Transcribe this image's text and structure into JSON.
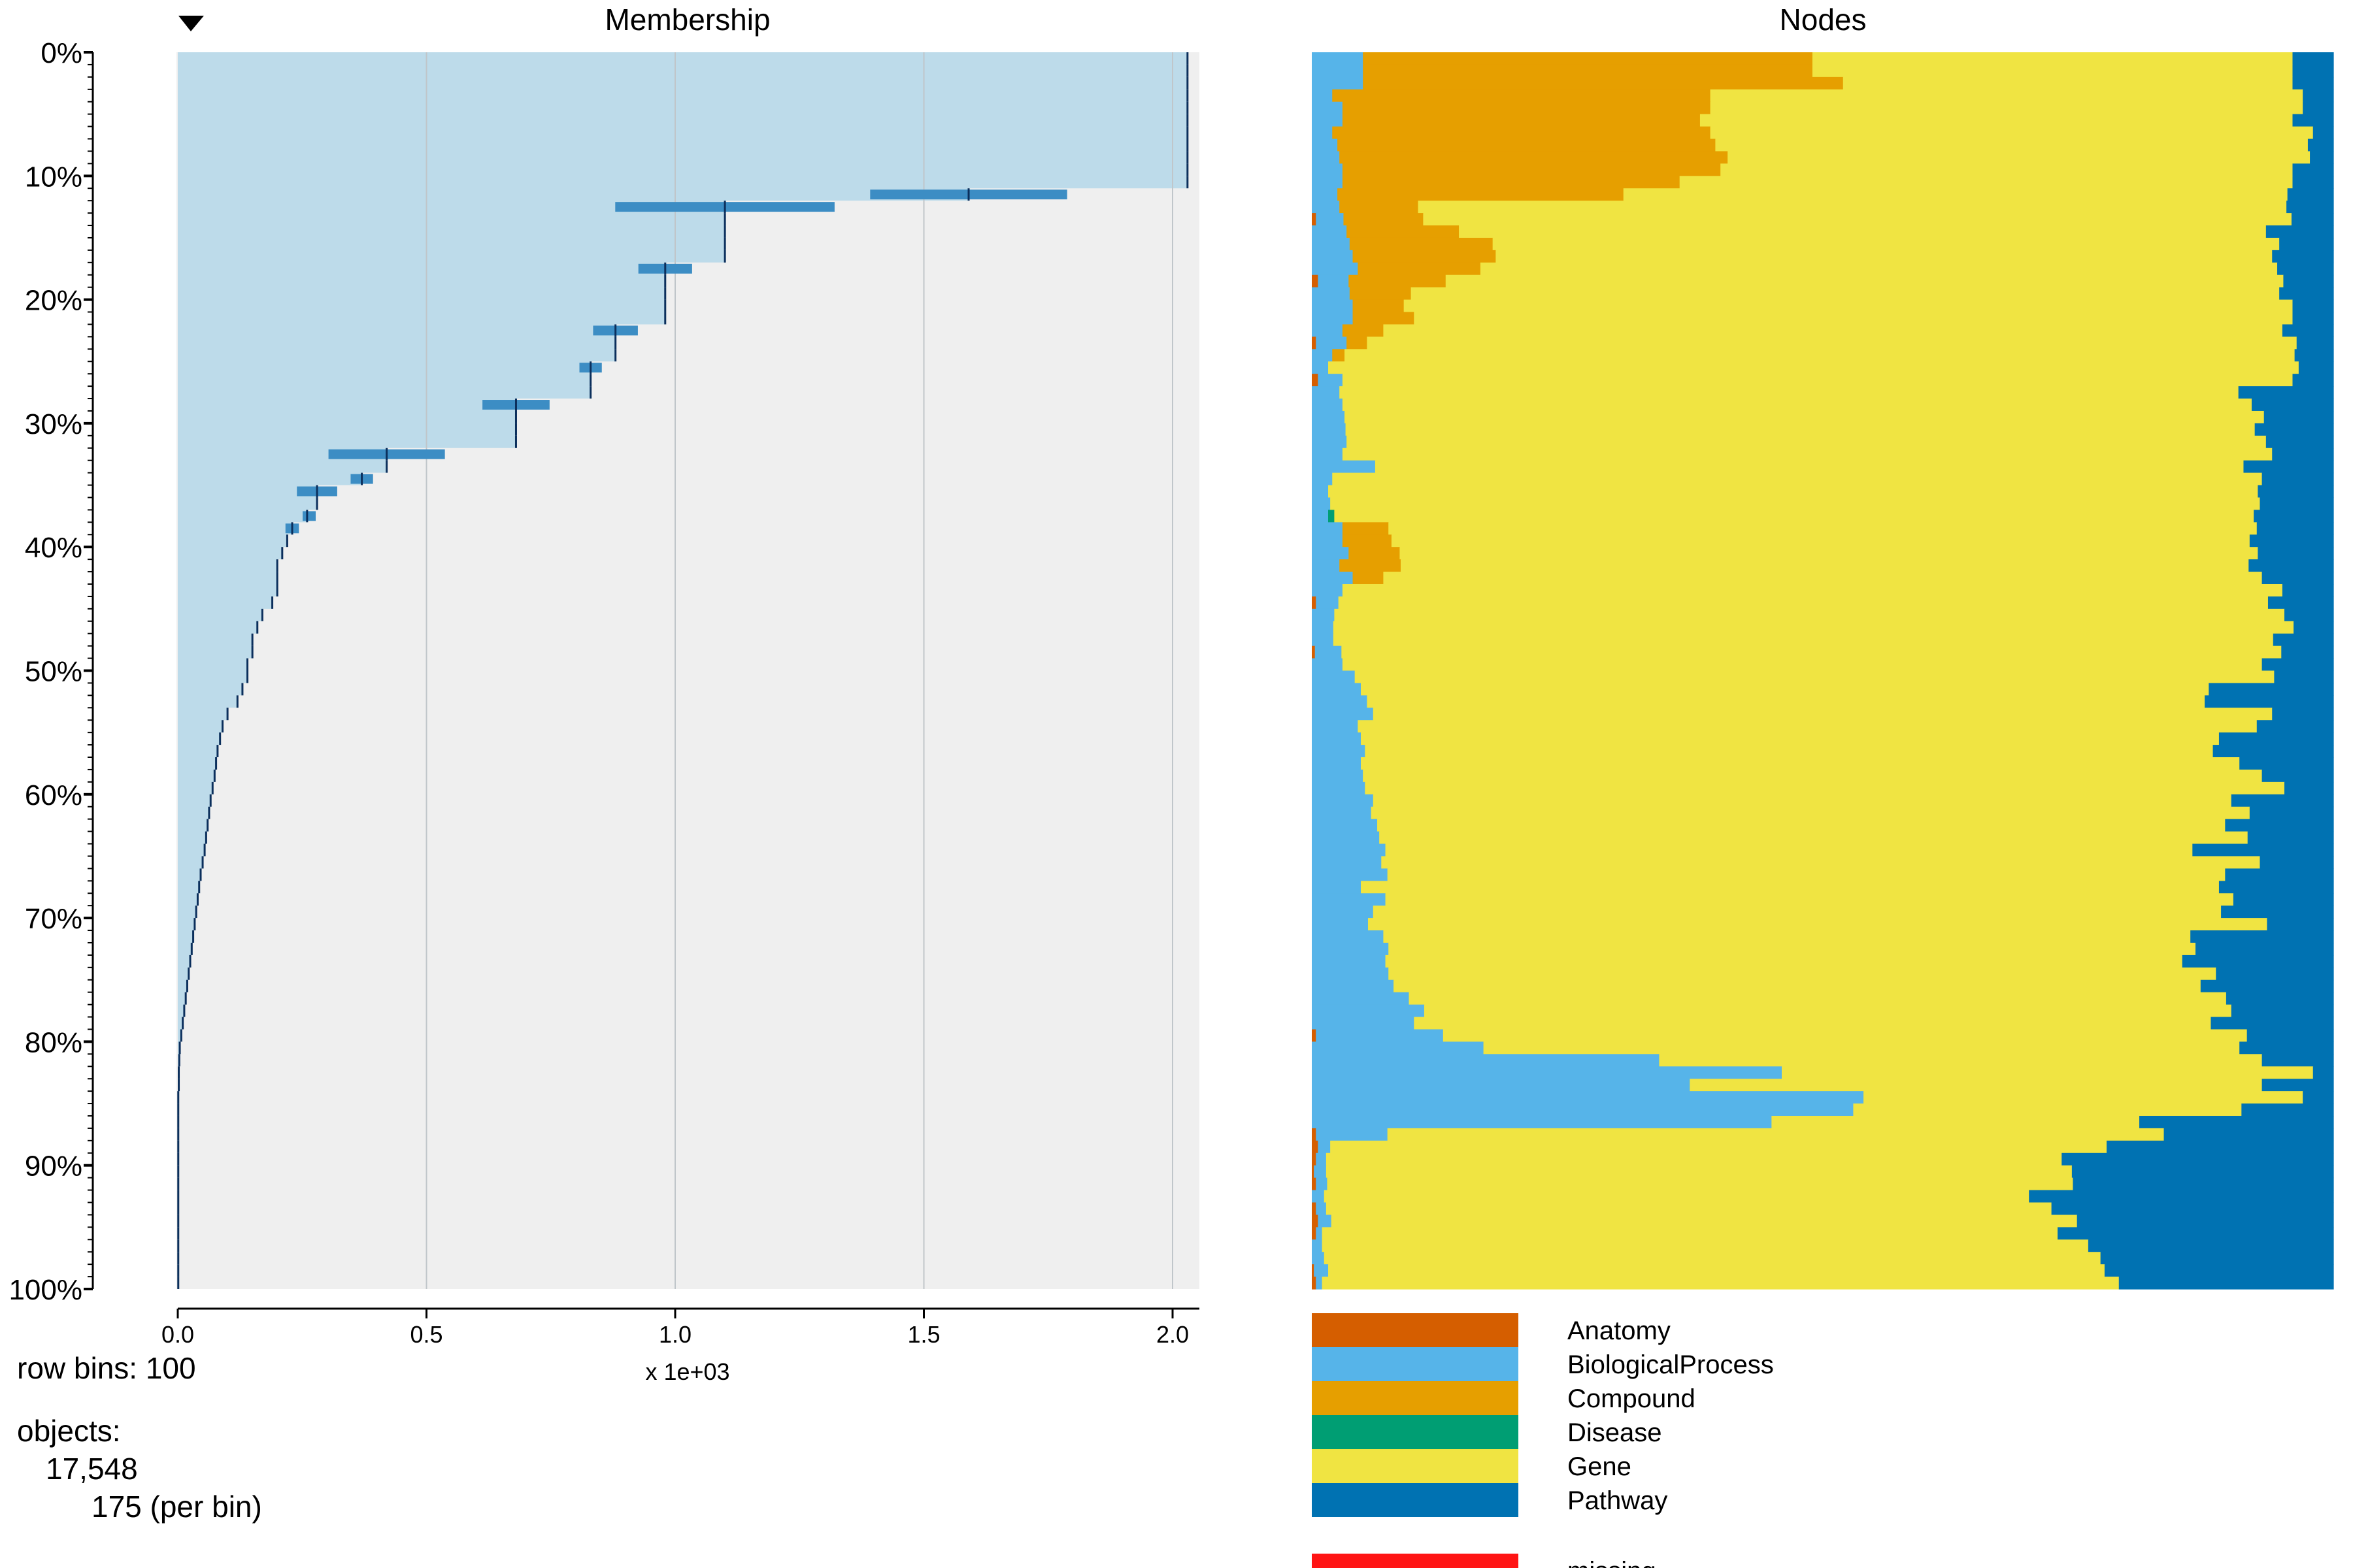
{
  "sort_indicator_icon": "triangle-down-icon",
  "membership_panel": {
    "title": "Membership",
    "x_ticks": [
      "0.0",
      "0.5",
      "1.0",
      "1.5",
      "2.0"
    ],
    "x_multiplier_label": "x 1e+03",
    "y_ticks": [
      "0%",
      "10%",
      "20%",
      "30%",
      "40%",
      "50%",
      "60%",
      "70%",
      "80%",
      "90%",
      "100%"
    ]
  },
  "nodes_panel": {
    "title": "Nodes"
  },
  "info": {
    "row_bins_label": "row bins: 100",
    "objects_label": "objects:",
    "objects_count": "17,548",
    "per_bin_label": "175 (per bin)"
  },
  "legend": {
    "items": [
      {
        "label": "Anatomy",
        "color": "#D55E00"
      },
      {
        "label": "BiologicalProcess",
        "color": "#56B4E9"
      },
      {
        "label": "Compound",
        "color": "#E69F00"
      },
      {
        "label": "Disease",
        "color": "#009E73"
      },
      {
        "label": "Gene",
        "color": "#F0E442"
      },
      {
        "label": "Pathway",
        "color": "#0072B2"
      }
    ],
    "missing": {
      "label": "missing",
      "color": "#FF1414"
    }
  },
  "colors": {
    "membership_fill": "#BDDBEA",
    "membership_bg": "#EFEFEF",
    "membership_bar": "#3C8DC4",
    "membership_line": "#0B2F5C",
    "grid": "#C0C6CA"
  },
  "chart_data": [
    {
      "type": "bar",
      "title": "Membership",
      "xlabel": "x 1e+03",
      "ylabel": "",
      "orientation": "horizontal",
      "xlim": [
        0,
        2.05
      ],
      "ylim": [
        "0%",
        "100%"
      ],
      "grid": true,
      "row_bins": 100,
      "objects": 17548,
      "per_bin": 175,
      "bins_mean_membership": [
        2.03,
        2.03,
        2.03,
        2.03,
        2.03,
        2.03,
        2.03,
        2.03,
        2.03,
        2.03,
        2.03,
        1.59,
        1.1,
        1.1,
        1.1,
        1.1,
        1.1,
        0.98,
        0.98,
        0.98,
        0.98,
        0.98,
        0.88,
        0.88,
        0.88,
        0.83,
        0.83,
        0.83,
        0.68,
        0.68,
        0.68,
        0.68,
        0.42,
        0.42,
        0.37,
        0.28,
        0.28,
        0.26,
        0.23,
        0.22,
        0.21,
        0.2,
        0.2,
        0.2,
        0.19,
        0.17,
        0.16,
        0.15,
        0.15,
        0.14,
        0.14,
        0.13,
        0.12,
        0.1,
        0.09,
        0.085,
        0.08,
        0.077,
        0.074,
        0.07,
        0.066,
        0.063,
        0.06,
        0.057,
        0.054,
        0.05,
        0.046,
        0.043,
        0.04,
        0.037,
        0.034,
        0.031,
        0.028,
        0.025,
        0.022,
        0.019,
        0.016,
        0.013,
        0.01,
        0.007,
        0.004,
        0.003,
        0.002,
        0.002,
        0.001,
        0.001,
        0.001,
        0.001,
        0.001,
        0.001,
        0.001,
        0.001,
        0.001,
        0.001,
        0.001,
        0.001,
        0.001,
        0.001,
        0.001,
        0.001
      ]
    },
    {
      "type": "bar",
      "title": "Nodes",
      "orientation": "horizontal",
      "stacked": true,
      "normalized": true,
      "row_bins": 100,
      "categories": [
        "Anatomy",
        "BiologicalProcess",
        "Compound",
        "Disease",
        "Gene",
        "Pathway"
      ],
      "stack_segments": {
        "Anatomy": [
          0,
          0,
          0,
          0,
          0,
          0,
          0,
          0,
          0,
          0,
          0,
          0,
          0,
          0.004,
          0,
          0,
          0,
          0,
          0.006,
          0,
          0,
          0,
          0,
          0.004,
          0,
          0,
          0.006,
          0,
          0,
          0,
          0,
          0,
          0,
          0,
          0,
          0,
          0,
          0,
          0,
          0,
          0,
          0,
          0,
          0,
          0.004,
          0,
          0,
          0,
          0.003,
          0,
          0,
          0,
          0,
          0,
          0,
          0,
          0,
          0,
          0,
          0,
          0,
          0,
          0,
          0,
          0,
          0,
          0,
          0,
          0,
          0,
          0,
          0,
          0,
          0,
          0,
          0,
          0,
          0,
          0,
          0.004,
          0,
          0,
          0,
          0,
          0,
          0,
          0,
          0.004,
          0.006,
          0.004,
          0.002,
          0.004,
          0,
          0.004,
          0.006,
          0.004,
          0,
          0,
          0.002,
          0.004
        ],
        "BiologicalProcess": [
          0.05,
          0.05,
          0.05,
          0.02,
          0.03,
          0.03,
          0.02,
          0.025,
          0.027,
          0.03,
          0.03,
          0.025,
          0.027,
          0.027,
          0.034,
          0.037,
          0.04,
          0.045,
          0.03,
          0.037,
          0.04,
          0.04,
          0.03,
          0.03,
          0.02,
          0.016,
          0.024,
          0.027,
          0.03,
          0.032,
          0.033,
          0.034,
          0.03,
          0.062,
          0.02,
          0.016,
          0.018,
          0.016,
          0.03,
          0.03,
          0.036,
          0.027,
          0.04,
          0.03,
          0.022,
          0.022,
          0.021,
          0.021,
          0.026,
          0.03,
          0.042,
          0.048,
          0.054,
          0.06,
          0.045,
          0.048,
          0.052,
          0.048,
          0.05,
          0.052,
          0.06,
          0.058,
          0.064,
          0.066,
          0.072,
          0.068,
          0.074,
          0.048,
          0.072,
          0.06,
          0.055,
          0.07,
          0.075,
          0.072,
          0.075,
          0.08,
          0.095,
          0.11,
          0.1,
          0.125,
          0.168,
          0.34,
          0.46,
          0.37,
          0.54,
          0.53,
          0.45,
          0.07,
          0.012,
          0.01,
          0.012,
          0.011,
          0.012,
          0.01,
          0.013,
          0.006,
          0.01,
          0.012,
          0.014,
          0.006
        ],
        "Compound": [
          0.44,
          0.44,
          0.47,
          0.37,
          0.36,
          0.35,
          0.37,
          0.37,
          0.38,
          0.37,
          0.33,
          0.28,
          0.077,
          0.078,
          0.11,
          0.14,
          0.14,
          0.12,
          0.095,
          0.06,
          0.05,
          0.06,
          0.04,
          0.02,
          0.012,
          0,
          0,
          0,
          0,
          0,
          0,
          0,
          0,
          0,
          0,
          0,
          0,
          0,
          0.045,
          0.048,
          0.05,
          0.06,
          0.03,
          0,
          0,
          0,
          0,
          0,
          0,
          0,
          0,
          0,
          0,
          0,
          0,
          0,
          0,
          0,
          0,
          0,
          0,
          0,
          0,
          0,
          0,
          0,
          0,
          0,
          0,
          0,
          0,
          0,
          0,
          0,
          0,
          0,
          0,
          0,
          0,
          0,
          0,
          0,
          0,
          0,
          0,
          0,
          0,
          0,
          0,
          0,
          0,
          0,
          0,
          0,
          0,
          0,
          0,
          0,
          0,
          0
        ],
        "Disease": [
          0,
          0,
          0,
          0,
          0,
          0,
          0,
          0,
          0,
          0,
          0,
          0,
          0,
          0,
          0,
          0,
          0,
          0,
          0,
          0,
          0,
          0,
          0,
          0,
          0,
          0,
          0,
          0,
          0,
          0,
          0,
          0,
          0,
          0,
          0,
          0,
          0,
          0.006,
          0,
          0,
          0,
          0,
          0,
          0,
          0,
          0,
          0,
          0,
          0,
          0,
          0,
          0,
          0,
          0,
          0,
          0,
          0,
          0,
          0,
          0,
          0,
          0,
          0,
          0,
          0,
          0,
          0,
          0,
          0,
          0,
          0,
          0,
          0,
          0,
          0,
          0,
          0,
          0,
          0,
          0,
          0,
          0,
          0,
          0,
          0,
          0,
          0,
          0,
          0,
          0,
          0,
          0,
          0,
          0,
          0,
          0,
          0,
          0,
          0,
          0
        ],
        "Gene": [
          0.47,
          0.47,
          0.44,
          0.58,
          0.58,
          0.58,
          0.59,
          0.58,
          0.57,
          0.56,
          0.6,
          0.65,
          0.85,
          0.85,
          0.79,
          0.77,
          0.76,
          0.78,
          0.82,
          0.85,
          0.87,
          0.86,
          0.88,
          0.91,
          0.93,
          0.95,
          0.93,
          0.88,
          0.89,
          0.9,
          0.89,
          0.9,
          0.91,
          0.85,
          0.91,
          0.91,
          0.91,
          0.9,
          0.85,
          0.84,
          0.84,
          0.83,
          0.86,
          0.92,
          0.91,
          0.93,
          0.94,
          0.92,
          0.92,
          0.9,
          0.9,
          0.83,
          0.82,
          0.88,
          0.88,
          0.84,
          0.83,
          0.86,
          0.88,
          0.9,
          0.84,
          0.86,
          0.83,
          0.85,
          0.79,
          0.86,
          0.82,
          0.84,
          0.83,
          0.83,
          0.88,
          0.79,
          0.79,
          0.78,
          0.81,
          0.79,
          0.8,
          0.79,
          0.78,
          0.79,
          0.74,
          0.59,
          0.52,
          0.56,
          0.43,
          0.38,
          0.36,
          0.76,
          0.76,
          0.72,
          0.73,
          0.73,
          0.69,
          0.71,
          0.73,
          0.72,
          0.75,
          0.76,
          0.76,
          0.78
        ],
        "Pathway": [
          0.04,
          0.04,
          0.04,
          0.03,
          0.03,
          0.04,
          0.02,
          0.025,
          0.023,
          0.04,
          0.04,
          0.045,
          0.046,
          0.041,
          0.066,
          0.053,
          0.06,
          0.055,
          0.049,
          0.053,
          0.04,
          0.04,
          0.05,
          0.036,
          0.038,
          0.034,
          0.04,
          0.093,
          0.08,
          0.068,
          0.077,
          0.066,
          0.06,
          0.088,
          0.07,
          0.074,
          0.072,
          0.078,
          0.075,
          0.082,
          0.074,
          0.083,
          0.07,
          0.05,
          0.064,
          0.048,
          0.039,
          0.059,
          0.051,
          0.07,
          0.058,
          0.122,
          0.126,
          0.06,
          0.075,
          0.112,
          0.118,
          0.092,
          0.07,
          0.048,
          0.1,
          0.082,
          0.106,
          0.084,
          0.138,
          0.072,
          0.106,
          0.112,
          0.098,
          0.11,
          0.065,
          0.14,
          0.135,
          0.148,
          0.115,
          0.13,
          0.105,
          0.1,
          0.12,
          0.085,
          0.092,
          0.07,
          0.02,
          0.07,
          0.03,
          0.09,
          0.19,
          0.166,
          0.222,
          0.266,
          0.256,
          0.255,
          0.298,
          0.276,
          0.251,
          0.27,
          0.24,
          0.228,
          0.224,
          0.21
        ]
      }
    }
  ]
}
